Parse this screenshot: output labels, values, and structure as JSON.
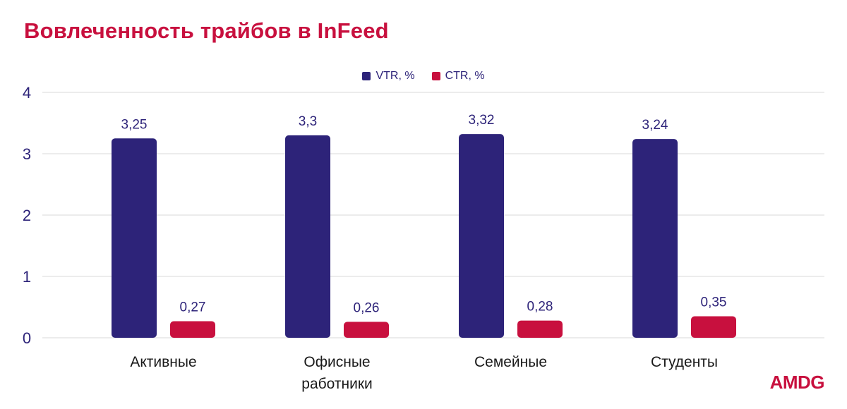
{
  "title": "Вовлеченность трайбов в InFeed",
  "logo": "AMDG",
  "colors": {
    "vtr": "#2d2379",
    "ctr": "#c8103e",
    "grid": "#d9d9d9",
    "text": "#2d2379",
    "accent": "#c8103e"
  },
  "chart_data": {
    "type": "bar",
    "title": "Вовлеченность трайбов в InFeed",
    "categories": [
      [
        "Активные"
      ],
      [
        "Офисные",
        "работники"
      ],
      [
        "Семейные"
      ],
      [
        "Студенты"
      ]
    ],
    "series": [
      {
        "name": "VTR, %",
        "values": [
          3.25,
          3.3,
          3.32,
          3.24
        ],
        "labels": [
          "3,25",
          "3,3",
          "3,32",
          "3,24"
        ]
      },
      {
        "name": "CTR, %",
        "values": [
          0.27,
          0.26,
          0.28,
          0.35
        ],
        "labels": [
          "0,27",
          "0,26",
          "0,28",
          "0,35"
        ]
      }
    ],
    "ylim": [
      0,
      4
    ],
    "yticks": [
      "0",
      "1",
      "2",
      "3",
      "4"
    ],
    "grid": true,
    "legend_position": "top-center"
  }
}
